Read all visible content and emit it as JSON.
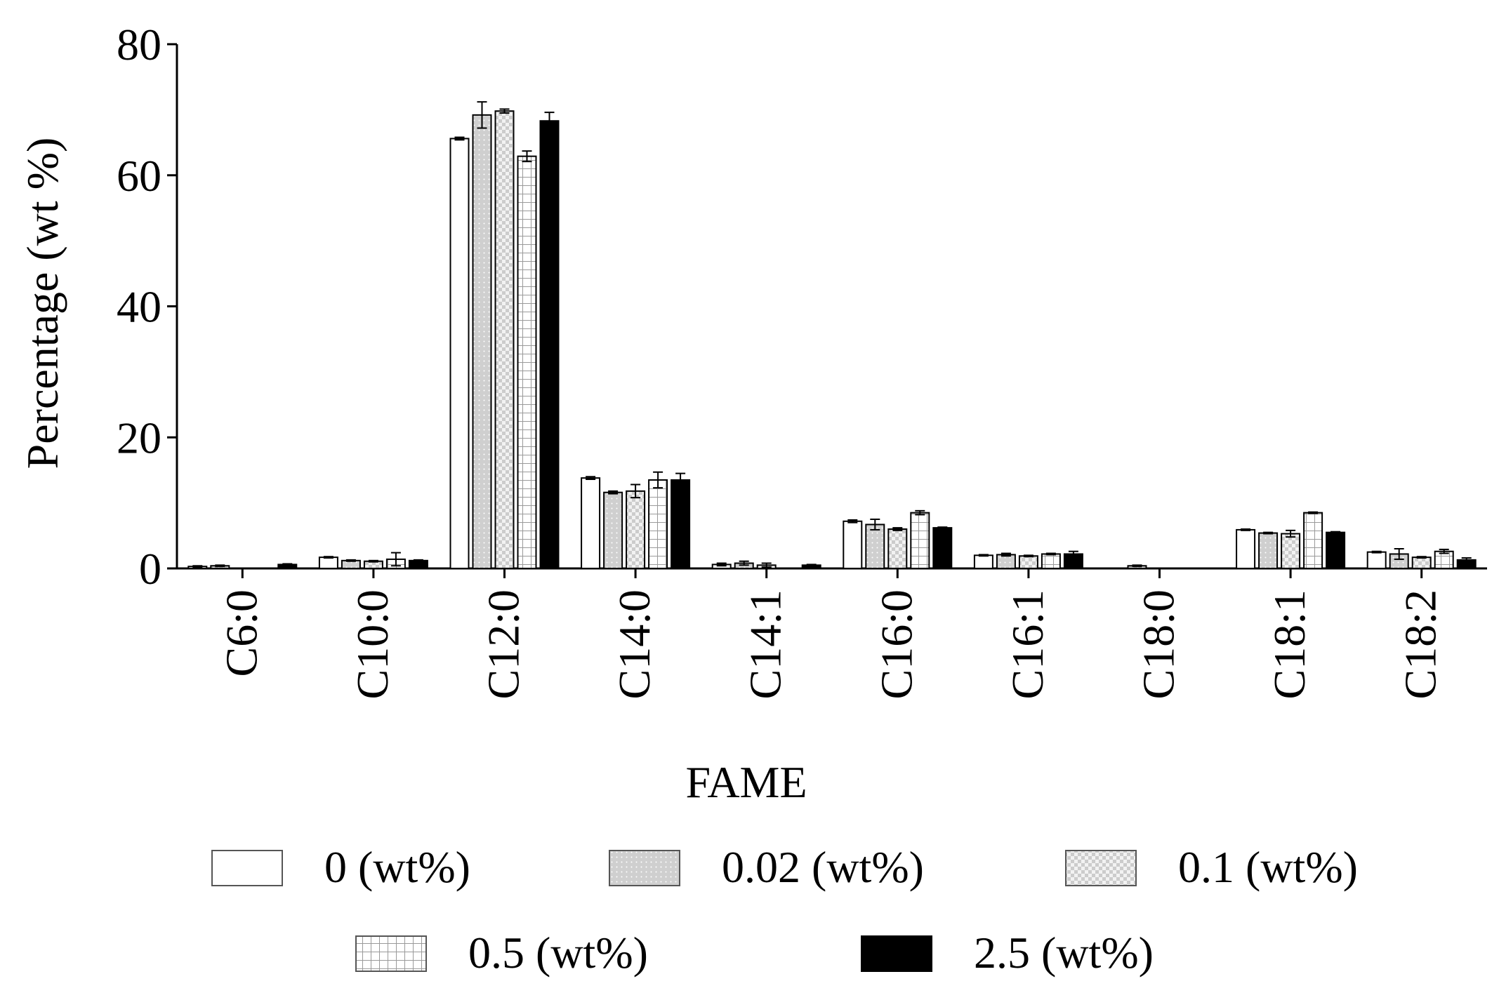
{
  "chart_data": {
    "type": "bar",
    "title": "",
    "xlabel": "FAME",
    "ylabel": "Percentage (wt %)",
    "ylim": [
      0,
      80
    ],
    "yticks": [
      0,
      20,
      40,
      60,
      80
    ],
    "grid": false,
    "legend_position": "bottom",
    "categories": [
      "C6:0",
      "C10:0",
      "C12:0",
      "C14:0",
      "C14:1",
      "C16:0",
      "C16:1",
      "C18:0",
      "C18:1",
      "C18:2"
    ],
    "series": [
      {
        "name": "0 (wt%)",
        "pattern": "white",
        "values": [
          0.3,
          1.7,
          65.6,
          13.8,
          0.6,
          7.2,
          2.0,
          0.0,
          5.9,
          2.5
        ],
        "errors": [
          0.1,
          0.1,
          0.2,
          0.2,
          0.2,
          0.2,
          0.1,
          0.0,
          0.1,
          0.1
        ]
      },
      {
        "name": "0.02 (wt%)",
        "pattern": "dots",
        "values": [
          0.4,
          1.2,
          69.2,
          11.6,
          0.8,
          6.7,
          2.1,
          0.4,
          5.4,
          2.2
        ],
        "errors": [
          0.1,
          0.1,
          2.0,
          0.2,
          0.3,
          0.8,
          0.2,
          0.1,
          0.1,
          0.8
        ]
      },
      {
        "name": "0.1 (wt%)",
        "pattern": "checker",
        "values": [
          0.0,
          1.1,
          69.8,
          11.8,
          0.5,
          6.0,
          1.9,
          0.0,
          5.3,
          1.7
        ],
        "errors": [
          0.0,
          0.1,
          0.3,
          1.0,
          0.3,
          0.2,
          0.1,
          0.0,
          0.5,
          0.1
        ]
      },
      {
        "name": "0.5 (wt%)",
        "pattern": "grid",
        "values": [
          0.0,
          1.4,
          62.9,
          13.5,
          0.0,
          8.5,
          2.2,
          0.0,
          8.5,
          2.6
        ],
        "errors": [
          0.0,
          1.0,
          0.8,
          1.2,
          0.0,
          0.3,
          0.1,
          0.0,
          0.1,
          0.3
        ]
      },
      {
        "name": "2.5 (wt%)",
        "pattern": "black",
        "values": [
          0.6,
          1.2,
          68.3,
          13.5,
          0.5,
          6.2,
          2.2,
          0.0,
          5.5,
          1.3
        ],
        "errors": [
          0.1,
          0.1,
          1.3,
          1.0,
          0.1,
          0.1,
          0.4,
          0.0,
          0.1,
          0.3
        ]
      }
    ]
  }
}
